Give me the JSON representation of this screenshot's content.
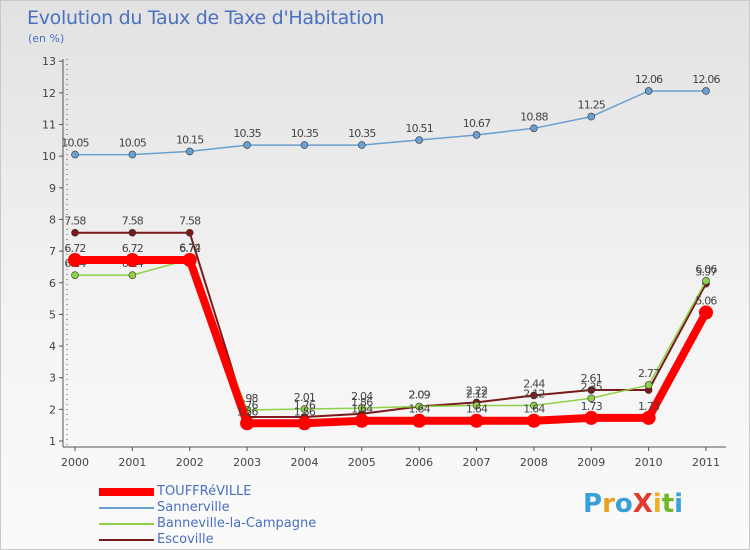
{
  "title": "Evolution du Taux de Taxe d'Habitation",
  "unit_label": "(en %)",
  "logo": {
    "text": "ProXiti",
    "colors": [
      "#3aa0d8",
      "#e8a020",
      "#3aa0d8",
      "#e03a2a",
      "#f0b020",
      "#70b828",
      "#3aa0d8"
    ]
  },
  "chart_data": {
    "type": "line",
    "x": [
      "2000",
      "2001",
      "2002",
      "2003",
      "2004",
      "2005",
      "2006",
      "2007",
      "2008",
      "2009",
      "2010",
      "2011"
    ],
    "ylim": [
      1,
      13
    ],
    "yticks": [
      "1",
      "2",
      "3",
      "4",
      "5",
      "6",
      "7",
      "8",
      "9",
      "10",
      "11",
      "12",
      "13"
    ],
    "grid": false,
    "legend_position": "bottom-left",
    "series": [
      {
        "name": "Escoville",
        "color": "#7a1a1a",
        "width": 2,
        "values": [
          7.58,
          7.58,
          7.58,
          1.76,
          1.76,
          1.86,
          2.09,
          2.22,
          2.44,
          2.61,
          2.61,
          5.97
        ],
        "labels": [
          "7.58",
          "7.58",
          "7.58",
          "1.76",
          "1.76",
          "1.86",
          "2.09",
          "2.22",
          "2.44",
          "2.61",
          "",
          "5.97"
        ]
      },
      {
        "name": "Banneville-la-Campagne",
        "color": "#8fd24a",
        "width": 1.5,
        "values": [
          6.24,
          6.24,
          6.74,
          1.98,
          2.01,
          2.04,
          2.09,
          2.12,
          2.12,
          2.35,
          2.77,
          6.06
        ],
        "labels": [
          "6.24",
          "6.24",
          "6.74",
          "1.98",
          "2.01",
          "2.04",
          "2.09",
          "2.12",
          "2.12",
          "2.35",
          "2.77",
          "6.06"
        ]
      },
      {
        "name": "Sannerville",
        "color": "#6a9fd0",
        "width": 1.5,
        "values": [
          10.05,
          10.05,
          10.15,
          10.35,
          10.35,
          10.35,
          10.51,
          10.67,
          10.88,
          11.25,
          12.06,
          12.06
        ],
        "labels": [
          "10.05",
          "10.05",
          "10.15",
          "10.35",
          "10.35",
          "10.35",
          "10.51",
          "10.67",
          "10.88",
          "11.25",
          "12.06",
          "12.06"
        ]
      },
      {
        "name": "TOUFFRéVILLE",
        "color": "#ff0000",
        "width": 8,
        "values": [
          6.72,
          6.72,
          6.72,
          1.56,
          1.56,
          1.64,
          1.64,
          1.64,
          1.64,
          1.73,
          1.73,
          5.06
        ],
        "labels": [
          "6.72",
          "6.72",
          "6.72",
          "1.56",
          "1.56",
          "1.64",
          "1.64",
          "1.64",
          "1.64",
          "1.73",
          "1.73",
          "5.06"
        ]
      }
    ],
    "legend": [
      "TOUFFRéVILLE",
      "Sannerville",
      "Banneville-la-Campagne",
      "Escoville"
    ]
  }
}
